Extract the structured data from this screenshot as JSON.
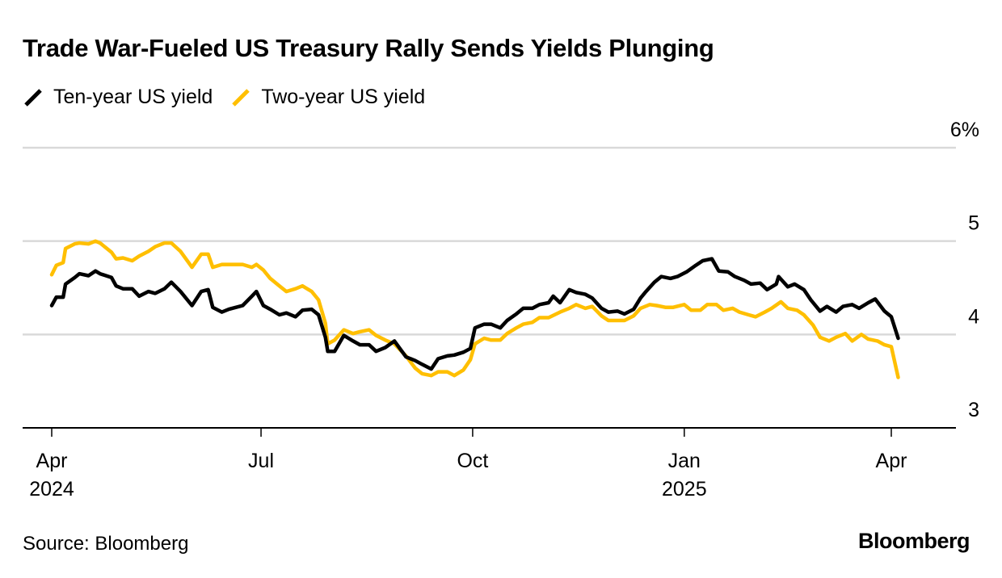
{
  "chart_data": {
    "type": "line",
    "title": "Trade War-Fueled US Treasury Rally Sends Yields Plunging",
    "xlabel": "",
    "ylabel": "",
    "y_unit": "%",
    "ylim": [
      3,
      6
    ],
    "y_ticks": [
      3,
      4,
      5,
      6
    ],
    "y_tick_labels": [
      "3",
      "4",
      "5",
      "6%"
    ],
    "grid": true,
    "legend_position": "top-left",
    "x_range": [
      "2024-04-01",
      "2025-05-01"
    ],
    "x_ticks": [
      {
        "date": "2024-04-01",
        "label": "Apr",
        "sublabel": "2024"
      },
      {
        "date": "2024-07-01",
        "label": "Jul",
        "sublabel": ""
      },
      {
        "date": "2024-10-01",
        "label": "Oct",
        "sublabel": ""
      },
      {
        "date": "2025-01-01",
        "label": "Jan",
        "sublabel": "2025"
      },
      {
        "date": "2025-04-01",
        "label": "Apr",
        "sublabel": ""
      }
    ],
    "series": [
      {
        "name": "Ten-year US yield",
        "color": "#000000",
        "points": [
          [
            "2024-04-01",
            4.31
          ],
          [
            "2024-04-03",
            4.4
          ],
          [
            "2024-04-06",
            4.4
          ],
          [
            "2024-04-07",
            4.54
          ],
          [
            "2024-04-11",
            4.61
          ],
          [
            "2024-04-13",
            4.65
          ],
          [
            "2024-04-17",
            4.63
          ],
          [
            "2024-04-20",
            4.68
          ],
          [
            "2024-04-22",
            4.65
          ],
          [
            "2024-04-27",
            4.61
          ],
          [
            "2024-04-29",
            4.52
          ],
          [
            "2024-05-02",
            4.49
          ],
          [
            "2024-05-06",
            4.49
          ],
          [
            "2024-05-09",
            4.41
          ],
          [
            "2024-05-13",
            4.46
          ],
          [
            "2024-05-16",
            4.44
          ],
          [
            "2024-05-20",
            4.49
          ],
          [
            "2024-05-23",
            4.56
          ],
          [
            "2024-05-27",
            4.46
          ],
          [
            "2024-06-01",
            4.31
          ],
          [
            "2024-06-05",
            4.46
          ],
          [
            "2024-06-08",
            4.48
          ],
          [
            "2024-06-10",
            4.29
          ],
          [
            "2024-06-14",
            4.24
          ],
          [
            "2024-06-17",
            4.27
          ],
          [
            "2024-06-23",
            4.31
          ],
          [
            "2024-06-27",
            4.41
          ],
          [
            "2024-06-29",
            4.46
          ],
          [
            "2024-07-02",
            4.31
          ],
          [
            "2024-07-05",
            4.27
          ],
          [
            "2024-07-09",
            4.21
          ],
          [
            "2024-07-12",
            4.23
          ],
          [
            "2024-07-16",
            4.19
          ],
          [
            "2024-07-19",
            4.26
          ],
          [
            "2024-07-23",
            4.27
          ],
          [
            "2024-07-26",
            4.21
          ],
          [
            "2024-07-29",
            3.97
          ],
          [
            "2024-07-30",
            3.82
          ],
          [
            "2024-08-02",
            3.82
          ],
          [
            "2024-08-06",
            3.99
          ],
          [
            "2024-08-10",
            3.93
          ],
          [
            "2024-08-13",
            3.89
          ],
          [
            "2024-08-17",
            3.89
          ],
          [
            "2024-08-20",
            3.82
          ],
          [
            "2024-08-24",
            3.86
          ],
          [
            "2024-08-28",
            3.93
          ],
          [
            "2024-09-02",
            3.76
          ],
          [
            "2024-09-06",
            3.72
          ],
          [
            "2024-09-09",
            3.68
          ],
          [
            "2024-09-13",
            3.63
          ],
          [
            "2024-09-16",
            3.74
          ],
          [
            "2024-09-20",
            3.77
          ],
          [
            "2024-09-23",
            3.78
          ],
          [
            "2024-09-27",
            3.81
          ],
          [
            "2024-09-30",
            3.85
          ],
          [
            "2024-10-02",
            4.07
          ],
          [
            "2024-10-06",
            4.11
          ],
          [
            "2024-10-09",
            4.11
          ],
          [
            "2024-10-13",
            4.07
          ],
          [
            "2024-10-16",
            4.15
          ],
          [
            "2024-10-20",
            4.22
          ],
          [
            "2024-10-23",
            4.28
          ],
          [
            "2024-10-27",
            4.28
          ],
          [
            "2024-10-30",
            4.32
          ],
          [
            "2024-11-03",
            4.34
          ],
          [
            "2024-11-05",
            4.41
          ],
          [
            "2024-11-08",
            4.34
          ],
          [
            "2024-11-12",
            4.48
          ],
          [
            "2024-11-15",
            4.45
          ],
          [
            "2024-11-19",
            4.43
          ],
          [
            "2024-11-22",
            4.39
          ],
          [
            "2024-11-26",
            4.28
          ],
          [
            "2024-11-29",
            4.24
          ],
          [
            "2024-12-03",
            4.25
          ],
          [
            "2024-12-06",
            4.22
          ],
          [
            "2024-12-10",
            4.27
          ],
          [
            "2024-12-13",
            4.39
          ],
          [
            "2024-12-15",
            4.45
          ],
          [
            "2024-12-19",
            4.56
          ],
          [
            "2024-12-22",
            4.62
          ],
          [
            "2024-12-26",
            4.6
          ],
          [
            "2024-12-29",
            4.62
          ],
          [
            "2025-01-02",
            4.67
          ],
          [
            "2025-01-06",
            4.74
          ],
          [
            "2025-01-09",
            4.79
          ],
          [
            "2025-01-13",
            4.81
          ],
          [
            "2025-01-16",
            4.68
          ],
          [
            "2025-01-20",
            4.67
          ],
          [
            "2025-01-23",
            4.62
          ],
          [
            "2025-01-27",
            4.58
          ],
          [
            "2025-01-30",
            4.54
          ],
          [
            "2025-02-03",
            4.55
          ],
          [
            "2025-02-06",
            4.48
          ],
          [
            "2025-02-10",
            4.54
          ],
          [
            "2025-02-11",
            4.62
          ],
          [
            "2025-02-15",
            4.51
          ],
          [
            "2025-02-18",
            4.54
          ],
          [
            "2025-02-22",
            4.48
          ],
          [
            "2025-02-25",
            4.37
          ],
          [
            "2025-03-01",
            4.25
          ],
          [
            "2025-03-04",
            4.3
          ],
          [
            "2025-03-08",
            4.24
          ],
          [
            "2025-03-11",
            4.3
          ],
          [
            "2025-03-15",
            4.32
          ],
          [
            "2025-03-18",
            4.28
          ],
          [
            "2025-03-22",
            4.34
          ],
          [
            "2025-03-25",
            4.38
          ],
          [
            "2025-03-29",
            4.25
          ],
          [
            "2025-04-01",
            4.19
          ],
          [
            "2025-04-04",
            3.96
          ]
        ]
      },
      {
        "name": "Two-year US yield",
        "color": "#FFBF00",
        "points": [
          [
            "2024-04-01",
            4.64
          ],
          [
            "2024-04-03",
            4.74
          ],
          [
            "2024-04-06",
            4.77
          ],
          [
            "2024-04-07",
            4.92
          ],
          [
            "2024-04-11",
            4.97
          ],
          [
            "2024-04-13",
            4.98
          ],
          [
            "2024-04-17",
            4.97
          ],
          [
            "2024-04-20",
            5.0
          ],
          [
            "2024-04-22",
            4.98
          ],
          [
            "2024-04-27",
            4.88
          ],
          [
            "2024-04-29",
            4.81
          ],
          [
            "2024-05-02",
            4.82
          ],
          [
            "2024-05-06",
            4.79
          ],
          [
            "2024-05-09",
            4.84
          ],
          [
            "2024-05-13",
            4.89
          ],
          [
            "2024-05-16",
            4.94
          ],
          [
            "2024-05-20",
            4.98
          ],
          [
            "2024-05-23",
            4.98
          ],
          [
            "2024-05-27",
            4.89
          ],
          [
            "2024-06-01",
            4.72
          ],
          [
            "2024-06-05",
            4.86
          ],
          [
            "2024-06-08",
            4.86
          ],
          [
            "2024-06-10",
            4.72
          ],
          [
            "2024-06-14",
            4.75
          ],
          [
            "2024-06-17",
            4.75
          ],
          [
            "2024-06-23",
            4.75
          ],
          [
            "2024-06-27",
            4.72
          ],
          [
            "2024-06-29",
            4.75
          ],
          [
            "2024-07-02",
            4.69
          ],
          [
            "2024-07-05",
            4.6
          ],
          [
            "2024-07-09",
            4.52
          ],
          [
            "2024-07-12",
            4.46
          ],
          [
            "2024-07-16",
            4.49
          ],
          [
            "2024-07-19",
            4.52
          ],
          [
            "2024-07-23",
            4.46
          ],
          [
            "2024-07-26",
            4.37
          ],
          [
            "2024-07-29",
            4.12
          ],
          [
            "2024-07-30",
            3.9
          ],
          [
            "2024-08-02",
            3.94
          ],
          [
            "2024-08-06",
            4.05
          ],
          [
            "2024-08-10",
            4.01
          ],
          [
            "2024-08-13",
            4.03
          ],
          [
            "2024-08-17",
            4.05
          ],
          [
            "2024-08-20",
            3.99
          ],
          [
            "2024-08-24",
            3.94
          ],
          [
            "2024-08-28",
            3.9
          ],
          [
            "2024-09-02",
            3.77
          ],
          [
            "2024-09-06",
            3.64
          ],
          [
            "2024-09-09",
            3.58
          ],
          [
            "2024-09-13",
            3.56
          ],
          [
            "2024-09-16",
            3.6
          ],
          [
            "2024-09-20",
            3.6
          ],
          [
            "2024-09-23",
            3.56
          ],
          [
            "2024-09-27",
            3.62
          ],
          [
            "2024-09-30",
            3.73
          ],
          [
            "2024-10-02",
            3.9
          ],
          [
            "2024-10-06",
            3.96
          ],
          [
            "2024-10-09",
            3.94
          ],
          [
            "2024-10-13",
            3.94
          ],
          [
            "2024-10-16",
            4.01
          ],
          [
            "2024-10-20",
            4.07
          ],
          [
            "2024-10-23",
            4.11
          ],
          [
            "2024-10-27",
            4.13
          ],
          [
            "2024-10-30",
            4.18
          ],
          [
            "2024-11-03",
            4.18
          ],
          [
            "2024-11-08",
            4.24
          ],
          [
            "2024-11-12",
            4.28
          ],
          [
            "2024-11-15",
            4.32
          ],
          [
            "2024-11-19",
            4.28
          ],
          [
            "2024-11-22",
            4.3
          ],
          [
            "2024-11-26",
            4.2
          ],
          [
            "2024-11-29",
            4.15
          ],
          [
            "2024-12-03",
            4.15
          ],
          [
            "2024-12-06",
            4.15
          ],
          [
            "2024-12-10",
            4.2
          ],
          [
            "2024-12-13",
            4.28
          ],
          [
            "2024-12-17",
            4.32
          ],
          [
            "2024-12-20",
            4.31
          ],
          [
            "2024-12-24",
            4.29
          ],
          [
            "2024-12-27",
            4.29
          ],
          [
            "2025-01-01",
            4.32
          ],
          [
            "2025-01-04",
            4.26
          ],
          [
            "2025-01-08",
            4.26
          ],
          [
            "2025-01-11",
            4.32
          ],
          [
            "2025-01-15",
            4.32
          ],
          [
            "2025-01-18",
            4.26
          ],
          [
            "2025-01-22",
            4.28
          ],
          [
            "2025-01-25",
            4.24
          ],
          [
            "2025-01-29",
            4.21
          ],
          [
            "2025-02-01",
            4.19
          ],
          [
            "2025-02-05",
            4.24
          ],
          [
            "2025-02-08",
            4.28
          ],
          [
            "2025-02-12",
            4.35
          ],
          [
            "2025-02-15",
            4.28
          ],
          [
            "2025-02-19",
            4.26
          ],
          [
            "2025-02-22",
            4.21
          ],
          [
            "2025-02-26",
            4.1
          ],
          [
            "2025-03-01",
            3.97
          ],
          [
            "2025-03-05",
            3.93
          ],
          [
            "2025-03-08",
            3.97
          ],
          [
            "2025-03-12",
            4.01
          ],
          [
            "2025-03-15",
            3.93
          ],
          [
            "2025-03-19",
            4.0
          ],
          [
            "2025-03-22",
            3.95
          ],
          [
            "2025-03-26",
            3.93
          ],
          [
            "2025-03-29",
            3.89
          ],
          [
            "2025-04-01",
            3.87
          ],
          [
            "2025-04-04",
            3.54
          ]
        ]
      }
    ],
    "source": "Source: Bloomberg"
  },
  "header": {
    "title": "Trade War-Fueled US Treasury Rally Sends Yields Plunging"
  },
  "legend": [
    {
      "label": "Ten-year US yield",
      "color": "#000000",
      "icon": "slash-line-icon"
    },
    {
      "label": "Two-year US yield",
      "color": "#FFBF00",
      "icon": "slash-line-icon"
    }
  ],
  "footer": {
    "source": "Source: Bloomberg",
    "brand": "Bloomberg"
  },
  "colors": {
    "grid": "#D9D9D9",
    "axis": "#000000",
    "ten_year": "#000000",
    "two_year": "#FFBF00"
  }
}
